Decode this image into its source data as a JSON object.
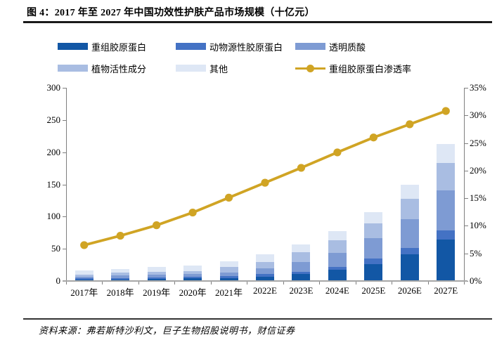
{
  "title": "图 4：2017 年至 2027 年中国功效性护肤产品市场规模（十亿元）",
  "source_note": "资料来源：弗若斯特沙利文，巨子生物招股说明书，财信证券",
  "colors": {
    "bar_recombinant_collagen": "#1257A5",
    "bar_animal_collagen": "#4472C4",
    "bar_hyaluronic_acid": "#7E9BD3",
    "bar_plant_actives": "#A9BDE2",
    "bar_other": "#DEE7F5",
    "penetration_line": "#D0A424",
    "axis_line": "#7f7f7f",
    "x_axis_line": "#a6a6a6",
    "title_rule": "#1a1a1a"
  },
  "chart_data": {
    "type": "bar",
    "subtype": "stacked-bar-with-line",
    "title": "2017 年至 2027 年中国功效性护肤产品市场规模（十亿元）",
    "categories": [
      "2017年",
      "2018年",
      "2019年",
      "2020年",
      "2021年",
      "2022E",
      "2023E",
      "2024E",
      "2025E",
      "2026E",
      "2027E"
    ],
    "series": [
      {
        "name": "重组胶原蛋白",
        "type": "bar",
        "color": "#1257A5",
        "values": [
          2.2,
          2.4,
          3.3,
          4.3,
          4.6,
          6.5,
          10.9,
          17.5,
          26.2,
          41.8,
          64.7
        ]
      },
      {
        "name": "动物源性胶原蛋白",
        "type": "bar",
        "color": "#4472C4",
        "values": [
          2.2,
          2.2,
          2.2,
          2.2,
          3.3,
          4.4,
          3.6,
          4.4,
          8.4,
          9.2,
          13.5
        ]
      },
      {
        "name": "透明质酸",
        "type": "bar",
        "color": "#7E9BD3",
        "values": [
          2.2,
          4.4,
          4.4,
          4.4,
          5.5,
          8.7,
          14.6,
          21.8,
          31.6,
          45.4,
          62.5
        ]
      },
      {
        "name": "植物活性成分",
        "type": "bar",
        "color": "#A9BDE2",
        "values": [
          3.3,
          4.4,
          4.4,
          4.4,
          8.0,
          9.8,
          15.6,
          20.0,
          23.6,
          31.6,
          42.9
        ]
      },
      {
        "name": "其他",
        "type": "bar",
        "color": "#DEE7F5",
        "values": [
          6.1,
          5.6,
          7.7,
          8.7,
          9.6,
          11.6,
          12.3,
          13.3,
          17.2,
          21.0,
          29.4
        ]
      },
      {
        "name": "重组胶原蛋白渗透率",
        "type": "line",
        "axis": "right",
        "color": "#D0A424",
        "values": [
          6.5,
          8.2,
          10.1,
          12.4,
          15.1,
          17.8,
          20.5,
          23.3,
          26.0,
          28.4,
          30.8
        ]
      }
    ],
    "bar_totals": [
      16.0,
      19.0,
      22.0,
      24.0,
      31.0,
      41.0,
      57.0,
      77.0,
      107.0,
      149.0,
      213.0
    ],
    "left_axis": {
      "min": 0,
      "max": 300,
      "step": 50,
      "tick_labels": [
        "0",
        "50",
        "100",
        "150",
        "200",
        "250",
        "300"
      ]
    },
    "right_axis": {
      "min": 0,
      "max": 35,
      "step": 5,
      "unit": "%",
      "tick_labels": [
        "0%",
        "5%",
        "10%",
        "15%",
        "20%",
        "25%",
        "30%",
        "35%"
      ]
    },
    "legend_position": "top",
    "grid": false
  }
}
